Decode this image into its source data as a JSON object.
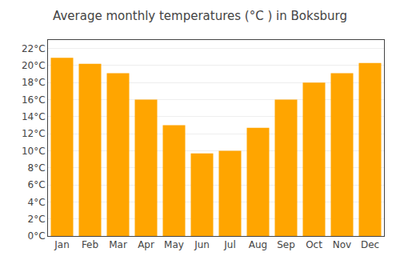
{
  "chart_data": {
    "type": "bar",
    "title": "Average monthly temperatures (°C ) in Boksburg",
    "categories": [
      "Jan",
      "Feb",
      "Mar",
      "Apr",
      "May",
      "Jun",
      "Jul",
      "Aug",
      "Sep",
      "Oct",
      "Nov",
      "Dec"
    ],
    "values": [
      20.9,
      20.2,
      19.1,
      16.0,
      13.0,
      9.7,
      10.0,
      12.7,
      16.0,
      18.0,
      19.1,
      20.3
    ],
    "color": "#FFA500",
    "ylim": [
      0,
      23
    ],
    "yticks": [
      {
        "value": 0,
        "label": "0°C"
      },
      {
        "value": 2,
        "label": "2°C"
      },
      {
        "value": 4,
        "label": "4°C"
      },
      {
        "value": 6,
        "label": "6°C"
      },
      {
        "value": 8,
        "label": "8°C"
      },
      {
        "value": 10,
        "label": "10°C"
      },
      {
        "value": 12,
        "label": "12°C"
      },
      {
        "value": 14,
        "label": "14°C"
      },
      {
        "value": 16,
        "label": "16°C"
      },
      {
        "value": 18,
        "label": "18°C"
      },
      {
        "value": 20,
        "label": "20°C"
      },
      {
        "value": 22,
        "label": "22°C"
      }
    ],
    "grid": true
  }
}
